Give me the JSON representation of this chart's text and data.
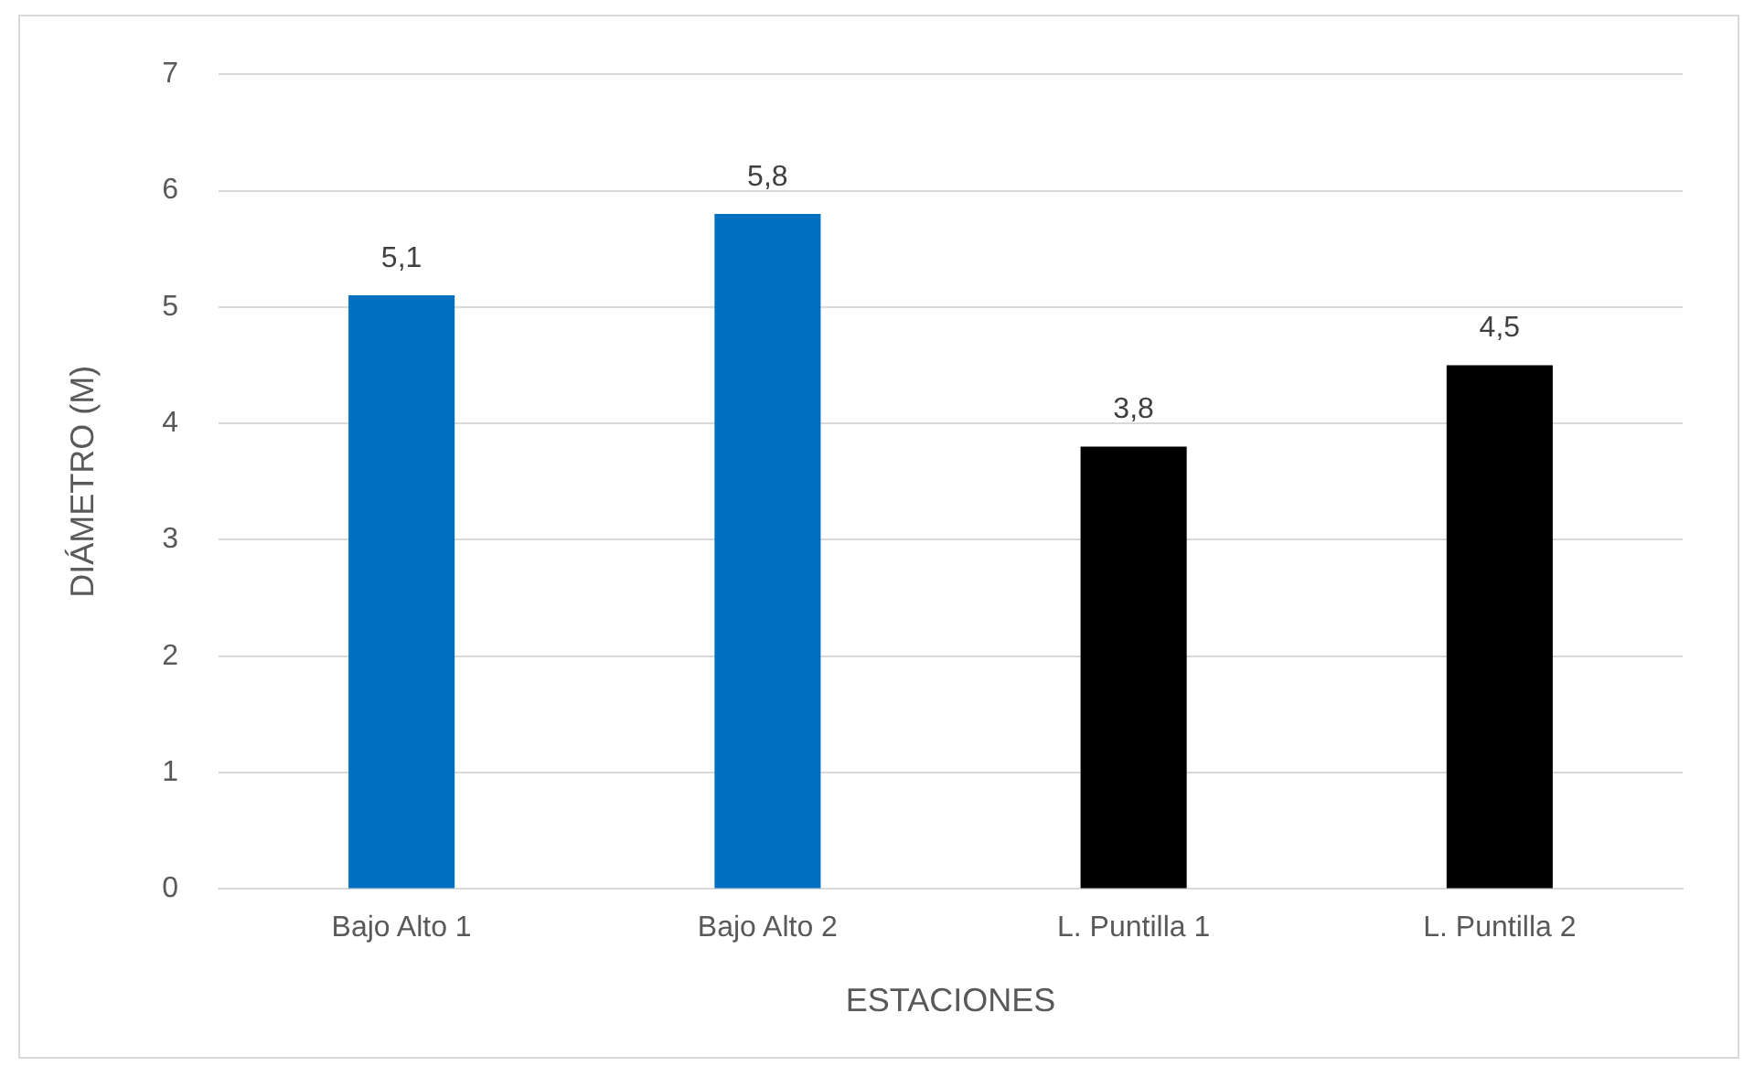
{
  "chart_data": {
    "type": "bar",
    "xlabel": "ESTACIONES",
    "ylabel": "DIÁMETRO (M)",
    "categories": [
      "Bajo Alto 1",
      "Bajo Alto 2",
      "L. Puntilla 1",
      "L. Puntilla 2"
    ],
    "values": [
      5.1,
      5.8,
      3.8,
      4.5
    ],
    "colors": [
      "#0070c0",
      "#0070c0",
      "#000000",
      "#000000"
    ],
    "value_labels": [
      "5,1",
      "5,8",
      "3,8",
      "4,5"
    ],
    "ylim": [
      0,
      7
    ],
    "yticks": [
      0,
      1,
      2,
      3,
      4,
      5,
      6,
      7
    ],
    "grid": "y",
    "legend": false
  }
}
